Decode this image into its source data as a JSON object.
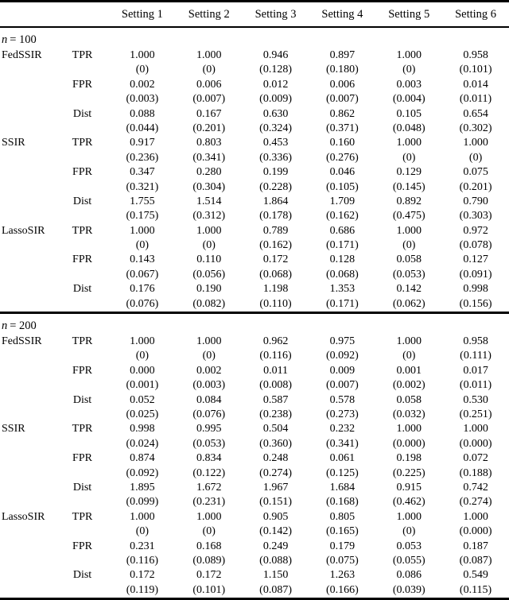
{
  "page": {
    "background": "#ffffff",
    "text_color": "#000000",
    "rule_color": "#000000"
  },
  "table": {
    "headers": [
      "Setting 1",
      "Setting 2",
      "Setting 3",
      "Setting 4",
      "Setting 5",
      "Setting 6"
    ],
    "sections": [
      {
        "label_var": "n",
        "label_rest": "= 100",
        "rows": [
          {
            "method": "FedSSIR",
            "metric": "TPR",
            "values": [
              "1.000",
              "1.000",
              "0.946",
              "0.897",
              "1.000",
              "0.958"
            ],
            "se": [
              "(0)",
              "(0)",
              "(0.128)",
              "(0.180)",
              "(0)",
              "(0.101)"
            ]
          },
          {
            "method": "",
            "metric": "FPR",
            "values": [
              "0.002",
              "0.006",
              "0.012",
              "0.006",
              "0.003",
              "0.014"
            ],
            "se": [
              "(0.003)",
              "(0.007)",
              "(0.009)",
              "(0.007)",
              "(0.004)",
              "(0.011)"
            ]
          },
          {
            "method": "",
            "metric": "Dist",
            "values": [
              "0.088",
              "0.167",
              "0.630",
              "0.862",
              "0.105",
              "0.654"
            ],
            "se": [
              "(0.044)",
              "(0.201)",
              "(0.324)",
              "(0.371)",
              "(0.048)",
              "(0.302)"
            ]
          },
          {
            "method": "SSIR",
            "metric": "TPR",
            "values": [
              "0.917",
              "0.803",
              "0.453",
              "0.160",
              "1.000",
              "1.000"
            ],
            "se": [
              "(0.236)",
              "(0.341)",
              "(0.336)",
              "(0.276)",
              "(0)",
              "(0)"
            ]
          },
          {
            "method": "",
            "metric": "FPR",
            "values": [
              "0.347",
              "0.280",
              "0.199",
              "0.046",
              "0.129",
              "0.075"
            ],
            "se": [
              "(0.321)",
              "(0.304)",
              "(0.228)",
              "(0.105)",
              "(0.145)",
              "(0.201)"
            ]
          },
          {
            "method": "",
            "metric": "Dist",
            "values": [
              "1.755",
              "1.514",
              "1.864",
              "1.709",
              "0.892",
              "0.790"
            ],
            "se": [
              "(0.175)",
              "(0.312)",
              "(0.178)",
              "(0.162)",
              "(0.475)",
              "(0.303)"
            ]
          },
          {
            "method": "LassoSIR",
            "metric": "TPR",
            "values": [
              "1.000",
              "1.000",
              "0.789",
              "0.686",
              "1.000",
              "0.972"
            ],
            "se": [
              "(0)",
              "(0)",
              "(0.162)",
              "(0.171)",
              "(0)",
              "(0.078)"
            ]
          },
          {
            "method": "",
            "metric": "FPR",
            "values": [
              "0.143",
              "0.110",
              "0.172",
              "0.128",
              "0.058",
              "0.127"
            ],
            "se": [
              "(0.067)",
              "(0.056)",
              "(0.068)",
              "(0.068)",
              "(0.053)",
              "(0.091)"
            ]
          },
          {
            "method": "",
            "metric": "Dist",
            "values": [
              "0.176",
              "0.190",
              "1.198",
              "1.353",
              "0.142",
              "0.998"
            ],
            "se": [
              "(0.076)",
              "(0.082)",
              "(0.110)",
              "(0.171)",
              "(0.062)",
              "(0.156)"
            ]
          }
        ]
      },
      {
        "label_var": "n",
        "label_rest": "= 200",
        "rows": [
          {
            "method": "FedSSIR",
            "metric": "TPR",
            "values": [
              "1.000",
              "1.000",
              "0.962",
              "0.975",
              "1.000",
              "0.958"
            ],
            "se": [
              "(0)",
              "(0)",
              "(0.116)",
              "(0.092)",
              "(0)",
              "(0.111)"
            ]
          },
          {
            "method": "",
            "metric": "FPR",
            "values": [
              "0.000",
              "0.002",
              "0.011",
              "0.009",
              "0.001",
              "0.017"
            ],
            "se": [
              "(0.001)",
              "(0.003)",
              "(0.008)",
              "(0.007)",
              "(0.002)",
              "(0.011)"
            ]
          },
          {
            "method": "",
            "metric": "Dist",
            "values": [
              "0.052",
              "0.084",
              "0.587",
              "0.578",
              "0.058",
              "0.530"
            ],
            "se": [
              "(0.025)",
              "(0.076)",
              "(0.238)",
              "(0.273)",
              "(0.032)",
              "(0.251)"
            ]
          },
          {
            "method": "SSIR",
            "metric": "TPR",
            "values": [
              "0.998",
              "0.995",
              "0.504",
              "0.232",
              "1.000",
              "1.000"
            ],
            "se": [
              "(0.024)",
              "(0.053)",
              "(0.360)",
              "(0.341)",
              "(0.000)",
              "(0.000)"
            ]
          },
          {
            "method": "",
            "metric": "FPR",
            "values": [
              "0.874",
              "0.834",
              "0.248",
              "0.061",
              "0.198",
              "0.072"
            ],
            "se": [
              "(0.092)",
              "(0.122)",
              "(0.274)",
              "(0.125)",
              "(0.225)",
              "(0.188)"
            ]
          },
          {
            "method": "",
            "metric": "Dist",
            "values": [
              "1.895",
              "1.672",
              "1.967",
              "1.684",
              "0.915",
              "0.742"
            ],
            "se": [
              "(0.099)",
              "(0.231)",
              "(0.151)",
              "(0.168)",
              "(0.462)",
              "(0.274)"
            ]
          },
          {
            "method": "LassoSIR",
            "metric": "TPR",
            "values": [
              "1.000",
              "1.000",
              "0.905",
              "0.805",
              "1.000",
              "1.000"
            ],
            "se": [
              "(0)",
              "(0)",
              "(0.142)",
              "(0.165)",
              "(0)",
              "(0.000)"
            ]
          },
          {
            "method": "",
            "metric": "FPR",
            "values": [
              "0.231",
              "0.168",
              "0.249",
              "0.179",
              "0.053",
              "0.187"
            ],
            "se": [
              "(0.116)",
              "(0.089)",
              "(0.088)",
              "(0.075)",
              "(0.055)",
              "(0.087)"
            ]
          },
          {
            "method": "",
            "metric": "Dist",
            "values": [
              "0.172",
              "0.172",
              "1.150",
              "1.263",
              "0.086",
              "0.549"
            ],
            "se": [
              "(0.119)",
              "(0.101)",
              "(0.087)",
              "(0.166)",
              "(0.039)",
              "(0.115)"
            ]
          }
        ]
      }
    ]
  }
}
